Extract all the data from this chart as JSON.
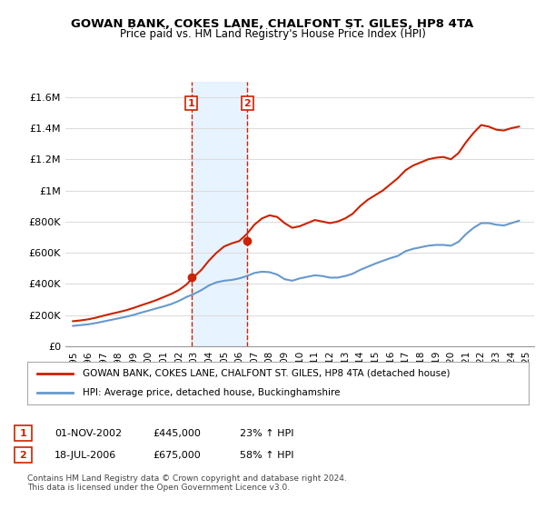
{
  "title": "GOWAN BANK, COKES LANE, CHALFONT ST. GILES, HP8 4TA",
  "subtitle": "Price paid vs. HM Land Registry's House Price Index (HPI)",
  "ylabel_ticks": [
    "£0",
    "£200K",
    "£400K",
    "£600K",
    "£800K",
    "£1M",
    "£1.2M",
    "£1.4M",
    "£1.6M"
  ],
  "ytick_values": [
    0,
    200000,
    400000,
    600000,
    800000,
    1000000,
    1200000,
    1400000,
    1600000
  ],
  "ylim": [
    0,
    1700000
  ],
  "hpi_color": "#6699cc",
  "price_color": "#cc2200",
  "background_color": "#ffffff",
  "grid_color": "#dddddd",
  "sale1_x": 2002.83,
  "sale1_y": 445000,
  "sale2_x": 2006.54,
  "sale2_y": 675000,
  "sale1_label": "1",
  "sale2_label": "2",
  "shade_color": "#ddeeff",
  "legend_line1": "GOWAN BANK, COKES LANE, CHALFONT ST. GILES, HP8 4TA (detached house)",
  "legend_line2": "HPI: Average price, detached house, Buckinghamshire",
  "table_row1": [
    "1",
    "01-NOV-2002",
    "£445,000",
    "23% ↑ HPI"
  ],
  "table_row2": [
    "2",
    "18-JUL-2006",
    "£675,000",
    "58% ↑ HPI"
  ],
  "footer": "Contains HM Land Registry data © Crown copyright and database right 2024.\nThis data is licensed under the Open Government Licence v3.0.",
  "xmin": 1994.5,
  "xmax": 2025.5,
  "hpi_data_x": [
    1995.0,
    1995.5,
    1996.0,
    1996.5,
    1997.0,
    1997.5,
    1998.0,
    1998.5,
    1999.0,
    1999.5,
    2000.0,
    2000.5,
    2001.0,
    2001.5,
    2002.0,
    2002.5,
    2003.0,
    2003.5,
    2004.0,
    2004.5,
    2005.0,
    2005.5,
    2006.0,
    2006.5,
    2007.0,
    2007.5,
    2008.0,
    2008.5,
    2009.0,
    2009.5,
    2010.0,
    2010.5,
    2011.0,
    2011.5,
    2012.0,
    2012.5,
    2013.0,
    2013.5,
    2014.0,
    2014.5,
    2015.0,
    2015.5,
    2016.0,
    2016.5,
    2017.0,
    2017.5,
    2018.0,
    2018.5,
    2019.0,
    2019.5,
    2020.0,
    2020.5,
    2021.0,
    2021.5,
    2022.0,
    2022.5,
    2023.0,
    2023.5,
    2024.0,
    2024.5
  ],
  "hpi_data_y": [
    130000,
    135000,
    140000,
    148000,
    158000,
    168000,
    178000,
    188000,
    200000,
    215000,
    228000,
    242000,
    255000,
    270000,
    290000,
    315000,
    335000,
    360000,
    390000,
    410000,
    420000,
    425000,
    435000,
    450000,
    470000,
    478000,
    475000,
    460000,
    430000,
    420000,
    435000,
    445000,
    455000,
    450000,
    440000,
    440000,
    450000,
    465000,
    490000,
    510000,
    530000,
    548000,
    565000,
    580000,
    610000,
    625000,
    635000,
    645000,
    650000,
    650000,
    645000,
    670000,
    720000,
    760000,
    790000,
    790000,
    780000,
    775000,
    790000,
    805000
  ],
  "price_data_x": [
    1995.0,
    1995.5,
    1996.0,
    1996.5,
    1997.0,
    1997.5,
    1998.0,
    1998.5,
    1999.0,
    1999.5,
    2000.0,
    2000.5,
    2001.0,
    2001.5,
    2002.0,
    2002.5,
    2003.0,
    2003.5,
    2004.0,
    2004.5,
    2005.0,
    2005.5,
    2006.0,
    2006.5,
    2007.0,
    2007.5,
    2008.0,
    2008.5,
    2009.0,
    2009.5,
    2010.0,
    2010.5,
    2011.0,
    2011.5,
    2012.0,
    2012.5,
    2013.0,
    2013.5,
    2014.0,
    2014.5,
    2015.0,
    2015.5,
    2016.0,
    2016.5,
    2017.0,
    2017.5,
    2018.0,
    2018.5,
    2019.0,
    2019.5,
    2020.0,
    2020.5,
    2021.0,
    2021.5,
    2022.0,
    2022.5,
    2023.0,
    2023.5,
    2024.0,
    2024.5
  ],
  "price_data_y": [
    160000,
    165000,
    172000,
    182000,
    195000,
    207000,
    218000,
    230000,
    245000,
    262000,
    278000,
    295000,
    315000,
    335000,
    360000,
    395000,
    445000,
    490000,
    550000,
    600000,
    640000,
    660000,
    675000,
    720000,
    780000,
    820000,
    840000,
    830000,
    790000,
    760000,
    770000,
    790000,
    810000,
    800000,
    790000,
    800000,
    820000,
    850000,
    900000,
    940000,
    970000,
    1000000,
    1040000,
    1080000,
    1130000,
    1160000,
    1180000,
    1200000,
    1210000,
    1215000,
    1200000,
    1240000,
    1310000,
    1370000,
    1420000,
    1410000,
    1390000,
    1385000,
    1400000,
    1410000
  ],
  "xtick_labels": [
    "1995",
    "1996",
    "1997",
    "1998",
    "1999",
    "2000",
    "2001",
    "2002",
    "2003",
    "2004",
    "2005",
    "2006",
    "2007",
    "2008",
    "2009",
    "2010",
    "2011",
    "2012",
    "2013",
    "2014",
    "2015",
    "2016",
    "2017",
    "2018",
    "2019",
    "2020",
    "2021",
    "2022",
    "2023",
    "2024",
    "2025"
  ],
  "xtick_values": [
    1995,
    1996,
    1997,
    1998,
    1999,
    2000,
    2001,
    2002,
    2003,
    2004,
    2005,
    2006,
    2007,
    2008,
    2009,
    2010,
    2011,
    2012,
    2013,
    2014,
    2015,
    2016,
    2017,
    2018,
    2019,
    2020,
    2021,
    2022,
    2023,
    2024,
    2025
  ]
}
